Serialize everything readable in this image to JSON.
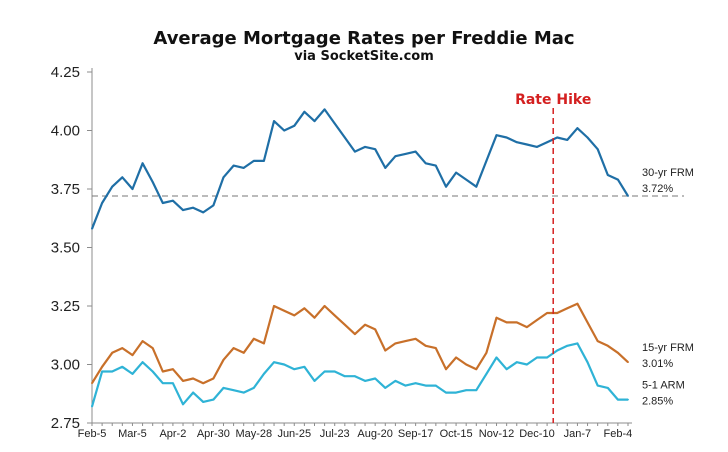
{
  "chart_data": {
    "type": "line",
    "title": "Average Mortgage Rates per Freddie Mac",
    "subtitle": "via SocketSite.com",
    "xlabel": "",
    "ylabel": "",
    "ylim": [
      2.75,
      4.25
    ],
    "y_ticks": [
      "4.25",
      "4.00",
      "3.75",
      "3.50",
      "3.25",
      "3.00",
      "2.75"
    ],
    "y_tick_values": [
      4.25,
      4.0,
      3.75,
      3.5,
      3.25,
      3.0,
      2.75
    ],
    "x_tick_labels": [
      "Feb-5",
      "Mar-5",
      "Apr-2",
      "Apr-30",
      "May-28",
      "Jun-25",
      "Jul-23",
      "Aug-20",
      "Sep-17",
      "Oct-15",
      "Nov-12",
      "Dec-10",
      "Jan-7",
      "Feb-4"
    ],
    "x_tick_indices": [
      0,
      4,
      8,
      12,
      16,
      20,
      24,
      28,
      32,
      36,
      40,
      44,
      48,
      52
    ],
    "grid": false,
    "series": [
      {
        "name": "30-yr FRM",
        "last_label": "3.72%",
        "color": "#1f6fa6",
        "values": [
          3.58,
          3.69,
          3.76,
          3.8,
          3.75,
          3.86,
          3.78,
          3.69,
          3.7,
          3.66,
          3.67,
          3.65,
          3.68,
          3.8,
          3.85,
          3.84,
          3.87,
          3.87,
          4.04,
          4.0,
          4.02,
          4.08,
          4.04,
          4.09,
          4.03,
          3.97,
          3.91,
          3.93,
          3.92,
          3.84,
          3.89,
          3.9,
          3.91,
          3.86,
          3.85,
          3.76,
          3.82,
          3.79,
          3.76,
          3.87,
          3.98,
          3.97,
          3.95,
          3.94,
          3.93,
          3.95,
          3.97,
          3.96,
          4.01,
          3.97,
          3.92,
          3.81,
          3.79,
          3.72
        ]
      },
      {
        "name": "15-yr FRM",
        "last_label": "3.01%",
        "color": "#c8702a",
        "values": [
          2.92,
          2.99,
          3.05,
          3.07,
          3.04,
          3.1,
          3.07,
          2.97,
          2.98,
          2.93,
          2.94,
          2.92,
          2.94,
          3.02,
          3.07,
          3.05,
          3.11,
          3.09,
          3.25,
          3.23,
          3.21,
          3.24,
          3.2,
          3.25,
          3.21,
          3.17,
          3.13,
          3.17,
          3.15,
          3.06,
          3.09,
          3.1,
          3.11,
          3.08,
          3.07,
          2.98,
          3.03,
          3.0,
          2.98,
          3.05,
          3.2,
          3.18,
          3.18,
          3.16,
          3.19,
          3.22,
          3.22,
          3.24,
          3.26,
          3.18,
          3.1,
          3.08,
          3.05,
          3.01
        ]
      },
      {
        "name": "5-1 ARM",
        "last_label": "2.85%",
        "color": "#2fb3d6",
        "values": [
          2.82,
          2.97,
          2.97,
          2.99,
          2.96,
          3.01,
          2.97,
          2.92,
          2.92,
          2.83,
          2.88,
          2.84,
          2.85,
          2.9,
          2.89,
          2.88,
          2.9,
          2.96,
          3.01,
          3.0,
          2.98,
          2.99,
          2.93,
          2.97,
          2.97,
          2.95,
          2.95,
          2.93,
          2.94,
          2.9,
          2.93,
          2.91,
          2.92,
          2.91,
          2.91,
          2.88,
          2.88,
          2.89,
          2.89,
          2.96,
          3.03,
          2.98,
          3.01,
          3.0,
          3.03,
          3.03,
          3.06,
          3.08,
          3.09,
          3.01,
          2.91,
          2.9,
          2.85,
          2.85
        ]
      }
    ],
    "reference_line": {
      "series": "30-yr FRM",
      "value": 3.72
    },
    "annotation": {
      "text": "Rate Hike",
      "x_index": 46,
      "color": "#d42020"
    }
  }
}
